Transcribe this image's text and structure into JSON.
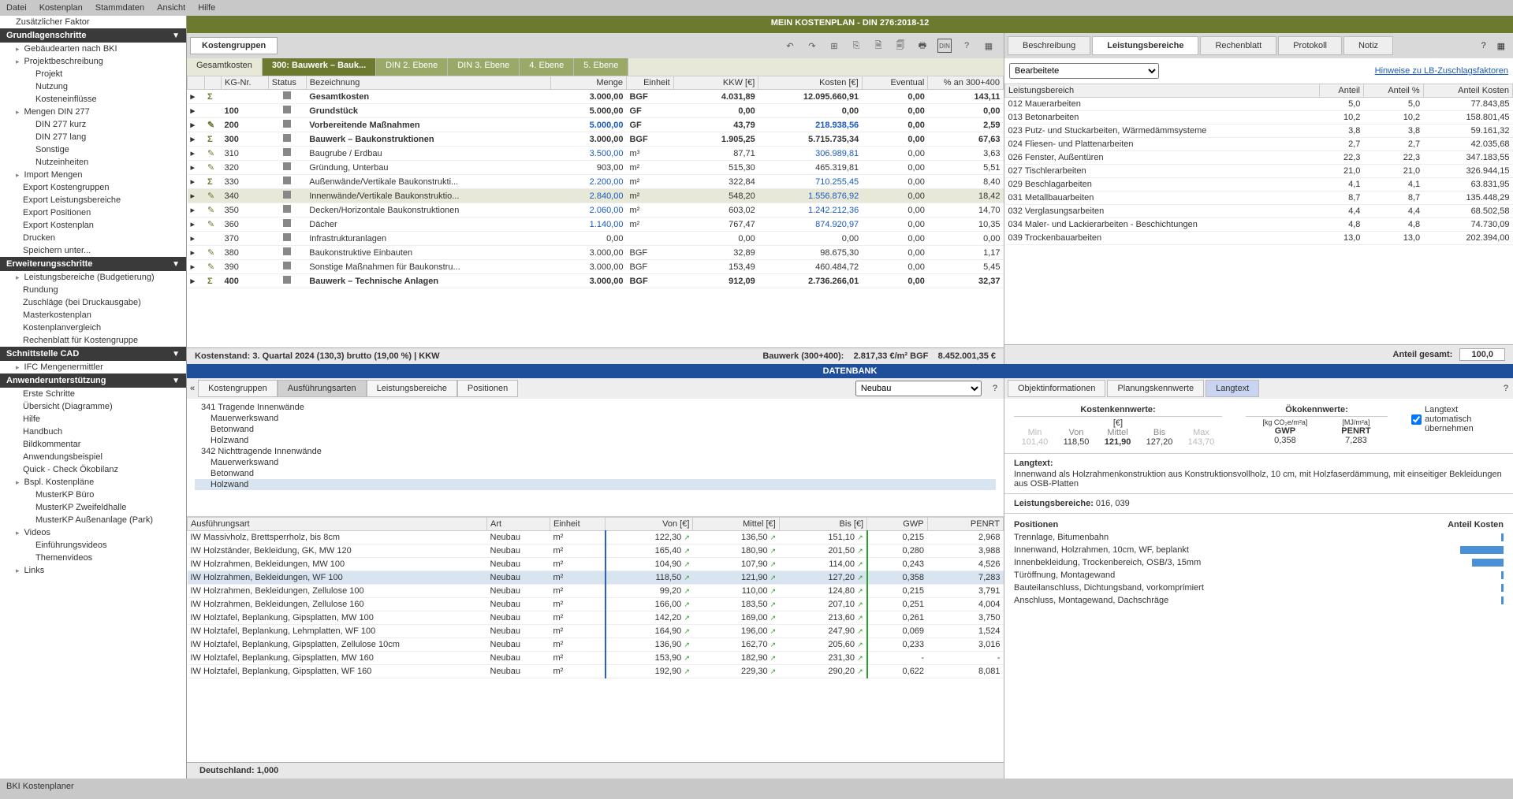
{
  "menu": [
    "Datei",
    "Kostenplan",
    "Stammdaten",
    "Ansicht",
    "Hilfe"
  ],
  "sidebar": {
    "top": "Zusätzlicher Faktor",
    "sections": [
      {
        "title": "Grundlagenschritte",
        "items": [
          {
            "label": "Gebäudearten nach BKI",
            "exp": true
          },
          {
            "label": "Projektbeschreibung",
            "exp": true
          },
          {
            "label": "Projekt",
            "lvl": 2
          },
          {
            "label": "Nutzung",
            "lvl": 2
          },
          {
            "label": "Kosteneinflüsse",
            "lvl": 2
          },
          {
            "label": "Mengen DIN 277",
            "exp": true
          },
          {
            "label": "DIN 277 kurz",
            "lvl": 2
          },
          {
            "label": "DIN 277 lang",
            "lvl": 2
          },
          {
            "label": "Sonstige",
            "lvl": 2
          },
          {
            "label": "Nutzeinheiten",
            "lvl": 2
          },
          {
            "label": "Import Mengen",
            "exp": true
          },
          {
            "label": "Export Kostengruppen"
          },
          {
            "label": "Export Leistungsbereiche"
          },
          {
            "label": "Export Positionen"
          },
          {
            "label": "Export Kostenplan"
          },
          {
            "label": "Drucken"
          },
          {
            "label": "Speichern unter..."
          }
        ]
      },
      {
        "title": "Erweiterungsschritte",
        "items": [
          {
            "label": "Leistungsbereiche (Budgetierung)",
            "exp": true
          },
          {
            "label": "Rundung"
          },
          {
            "label": "Zuschläge (bei Druckausgabe)"
          },
          {
            "label": "Masterkostenplan"
          },
          {
            "label": "Kostenplanvergleich"
          },
          {
            "label": "Rechenblatt für Kostengruppe"
          }
        ]
      },
      {
        "title": "Schnittstelle CAD",
        "items": [
          {
            "label": "IFC Mengenermittler",
            "exp": true
          }
        ]
      },
      {
        "title": "Anwenderunterstützung",
        "items": [
          {
            "label": "Erste Schritte"
          },
          {
            "label": "Übersicht (Diagramme)"
          },
          {
            "label": "Hilfe"
          },
          {
            "label": "Handbuch"
          },
          {
            "label": "Bildkommentar"
          },
          {
            "label": "Anwendungsbeispiel"
          },
          {
            "label": "Quick - Check Ökobilanz"
          },
          {
            "label": "Bspl. Kostenpläne",
            "exp": true
          },
          {
            "label": "MusterKP Büro",
            "lvl": 2
          },
          {
            "label": "MusterKP Zweifeldhalle",
            "lvl": 2
          },
          {
            "label": "MusterKP Außenanlage (Park)",
            "lvl": 2
          },
          {
            "label": "Videos",
            "exp": true
          },
          {
            "label": "Einführungsvideos",
            "lvl": 2
          },
          {
            "label": "Themenvideos",
            "lvl": 2
          },
          {
            "label": "Links",
            "exp": true
          }
        ]
      }
    ]
  },
  "title": "MEIN KOSTENPLAN - DIN 276:2018-12",
  "kg_tab": "Kostengruppen",
  "crumbs": [
    "Gesamtkosten",
    "300: Bauwerk – Bauk...",
    "DIN 2. Ebene",
    "DIN 3. Ebene",
    "4. Ebene",
    "5. Ebene"
  ],
  "cost_cols": [
    "KG-Nr.",
    "Status",
    "Bezeichnung",
    "Menge",
    "Einheit",
    "KKW [€]",
    "Kosten [€]",
    "Eventual",
    "% an 300+400"
  ],
  "cost_rows": [
    {
      "i": "Σ",
      "kg": "",
      "bez": "Gesamtkosten",
      "menge": "3.000,00",
      "ein": "BGF",
      "kkw": "4.031,89",
      "kost": "12.095.660,91",
      "ev": "0,00",
      "pct": "143,11",
      "bold": true
    },
    {
      "i": "",
      "kg": "100",
      "bez": "Grundstück",
      "menge": "5.000,00",
      "ein": "GF",
      "kkw": "0,00",
      "kost": "0,00",
      "ev": "0,00",
      "pct": "0,00",
      "bold": true
    },
    {
      "i": "✎",
      "kg": "200",
      "bez": "Vorbereitende Maßnahmen",
      "menge": "5.000,00",
      "ein": "GF",
      "kkw": "43,79",
      "kost": "218.938,56",
      "ev": "0,00",
      "pct": "2,59",
      "bold": true,
      "blue": true
    },
    {
      "i": "Σ",
      "kg": "300",
      "bez": "Bauwerk – Baukonstruktionen",
      "menge": "3.000,00",
      "ein": "BGF",
      "kkw": "1.905,25",
      "kost": "5.715.735,34",
      "ev": "0,00",
      "pct": "67,63",
      "bold": true
    },
    {
      "i": "✎",
      "kg": "310",
      "bez": "Baugrube / Erdbau",
      "menge": "3.500,00",
      "ein": "m³",
      "kkw": "87,71",
      "kost": "306.989,81",
      "ev": "0,00",
      "pct": "3,63",
      "blue": true
    },
    {
      "i": "✎",
      "kg": "320",
      "bez": "Gründung, Unterbau",
      "menge": "903,00",
      "ein": "m²",
      "kkw": "515,30",
      "kost": "465.319,81",
      "ev": "0,00",
      "pct": "5,51"
    },
    {
      "i": "Σ",
      "kg": "330",
      "bez": "Außenwände/Vertikale Baukonstrukti...",
      "menge": "2.200,00",
      "ein": "m²",
      "kkw": "322,84",
      "kost": "710.255,45",
      "ev": "0,00",
      "pct": "8,40",
      "blue": true
    },
    {
      "i": "✎",
      "kg": "340",
      "bez": "Innenwände/Vertikale Baukonstruktio...",
      "menge": "2.840,00",
      "ein": "m²",
      "kkw": "548,20",
      "kost": "1.556.876,92",
      "ev": "0,00",
      "pct": "18,42",
      "blue": true,
      "sel": true
    },
    {
      "i": "✎",
      "kg": "350",
      "bez": "Decken/Horizontale Baukonstruktionen",
      "menge": "2.060,00",
      "ein": "m²",
      "kkw": "603,02",
      "kost": "1.242.212,36",
      "ev": "0,00",
      "pct": "14,70",
      "blue": true
    },
    {
      "i": "✎",
      "kg": "360",
      "bez": "Dächer",
      "menge": "1.140,00",
      "ein": "m²",
      "kkw": "767,47",
      "kost": "874.920,97",
      "ev": "0,00",
      "pct": "10,35",
      "blue": true
    },
    {
      "i": "",
      "kg": "370",
      "bez": "Infrastrukturanlagen",
      "menge": "0,00",
      "ein": "",
      "kkw": "0,00",
      "kost": "0,00",
      "ev": "0,00",
      "pct": "0,00"
    },
    {
      "i": "✎",
      "kg": "380",
      "bez": "Baukonstruktive Einbauten",
      "menge": "3.000,00",
      "ein": "BGF",
      "kkw": "32,89",
      "kost": "98.675,30",
      "ev": "0,00",
      "pct": "1,17"
    },
    {
      "i": "✎",
      "kg": "390",
      "bez": "Sonstige Maßnahmen für Baukonstru...",
      "menge": "3.000,00",
      "ein": "BGF",
      "kkw": "153,49",
      "kost": "460.484,72",
      "ev": "0,00",
      "pct": "5,45"
    },
    {
      "i": "Σ",
      "kg": "400",
      "bez": "Bauwerk – Technische Anlagen",
      "menge": "3.000,00",
      "ein": "BGF",
      "kkw": "912,09",
      "kost": "2.736.266,01",
      "ev": "0,00",
      "pct": "32,37",
      "bold": true
    }
  ],
  "cost_footer_l": "Kostenstand: 3. Quartal 2024 (130,3) brutto (19,00 %) | KKW",
  "cost_footer_r1": "Bauwerk (300+400):",
  "cost_footer_r2": "2.817,33 €/m² BGF",
  "cost_footer_r3": "8.452.001,35 €",
  "rp_tabs": [
    "Beschreibung",
    "Leistungsbereiche",
    "Rechenblatt",
    "Protokoll",
    "Notiz"
  ],
  "rp_active": 1,
  "rp_select": "Bearbeitete",
  "rp_link": "Hinweise zu LB-Zuschlagsfaktoren",
  "lb_cols": [
    "Leistungsbereich",
    "Anteil",
    "Anteil %",
    "Anteil Kosten"
  ],
  "lb_rows": [
    [
      "012 Mauerarbeiten",
      "5,0",
      "5,0",
      "77.843,85"
    ],
    [
      "013 Betonarbeiten",
      "10,2",
      "10,2",
      "158.801,45"
    ],
    [
      "023 Putz- und Stuckarbeiten, Wärmedämmsysteme",
      "3,8",
      "3,8",
      "59.161,32"
    ],
    [
      "024 Fliesen- und Plattenarbeiten",
      "2,7",
      "2,7",
      "42.035,68"
    ],
    [
      "026 Fenster, Außentüren",
      "22,3",
      "22,3",
      "347.183,55"
    ],
    [
      "027 Tischlerarbeiten",
      "21,0",
      "21,0",
      "326.944,15"
    ],
    [
      "029 Beschlagarbeiten",
      "4,1",
      "4,1",
      "63.831,95"
    ],
    [
      "031 Metallbauarbeiten",
      "8,7",
      "8,7",
      "135.448,29"
    ],
    [
      "032 Verglasungsarbeiten",
      "4,4",
      "4,4",
      "68.502,58"
    ],
    [
      "034 Maler- und Lackierarbeiten - Beschichtungen",
      "4,8",
      "4,8",
      "74.730,09"
    ],
    [
      "039 Trockenbauarbeiten",
      "13,0",
      "13,0",
      "202.394,00"
    ]
  ],
  "lb_footer_l": "Anteil gesamt:",
  "lb_footer_v": "100,0",
  "db_title": "DATENBANK",
  "db_tabs": [
    "Kostengruppen",
    "Ausführungsarten",
    "Leistungsbereiche",
    "Positionen"
  ],
  "db_active": 1,
  "db_select": "Neubau",
  "db_tree": [
    {
      "t": "341 Tragende Innenwände",
      "l": 1
    },
    {
      "t": "Mauerwerkswand"
    },
    {
      "t": "Betonwand"
    },
    {
      "t": "Holzwand"
    },
    {
      "t": "342 Nichttragende Innenwände",
      "l": 1
    },
    {
      "t": "Mauerwerkswand"
    },
    {
      "t": "Betonwand"
    },
    {
      "t": "Holzwand",
      "sel": true
    }
  ],
  "db_cols": [
    "Ausführungsart",
    "Art",
    "Einheit",
    "Von [€]",
    "Mittel [€]",
    "Bis [€]",
    "GWP",
    "PENRT"
  ],
  "db_rows": [
    [
      "IW Massivholz, Brettsperrholz, bis 8cm",
      "Neubau",
      "m²",
      "122,30",
      "136,50",
      "151,10",
      "0,215",
      "2,968"
    ],
    [
      "IW Holzständer, Bekleidung, GK, MW 120",
      "Neubau",
      "m²",
      "165,40",
      "180,90",
      "201,50",
      "0,280",
      "3,988"
    ],
    [
      "IW Holzrahmen, Bekleidungen, MW 100",
      "Neubau",
      "m²",
      "104,90",
      "107,90",
      "114,00",
      "0,243",
      "4,526"
    ],
    [
      "IW Holzrahmen, Bekleidungen, WF 100",
      "Neubau",
      "m²",
      "118,50",
      "121,90",
      "127,20",
      "0,358",
      "7,283"
    ],
    [
      "IW Holzrahmen, Bekleidungen, Zellulose 100",
      "Neubau",
      "m²",
      "99,20",
      "110,00",
      "124,80",
      "0,215",
      "3,791"
    ],
    [
      "IW Holzrahmen, Bekleidungen, Zellulose 160",
      "Neubau",
      "m²",
      "166,00",
      "183,50",
      "207,10",
      "0,251",
      "4,004"
    ],
    [
      "IW Holztafel, Beplankung, Gipsplatten, MW 100",
      "Neubau",
      "m²",
      "142,20",
      "169,00",
      "213,60",
      "0,261",
      "3,750"
    ],
    [
      "IW Holztafel, Beplankung, Lehmplatten, WF 100",
      "Neubau",
      "m²",
      "164,90",
      "196,00",
      "247,90",
      "0,069",
      "1,524"
    ],
    [
      "IW Holztafel, Beplankung, Gipsplatten, Zellulose 10cm",
      "Neubau",
      "m²",
      "136,90",
      "162,70",
      "205,60",
      "0,233",
      "3,016"
    ],
    [
      "IW Holztafel, Beplankung, Gipsplatten, MW 160",
      "Neubau",
      "m²",
      "153,90",
      "182,90",
      "231,30",
      "-",
      "-"
    ],
    [
      "IW Holztafel, Beplankung, Gipsplatten, WF 160",
      "Neubau",
      "m²",
      "192,90",
      "229,30",
      "290,20",
      "0,622",
      "8,081"
    ]
  ],
  "db_hl": 3,
  "db_footer": "Deutschland: 1,000",
  "dr_tabs": [
    "Objektinformationen",
    "Planungskennwerte",
    "Langtext"
  ],
  "dr_active": 2,
  "kk": {
    "hdr1": "Kostenkennwerte:",
    "unit1": "[€]",
    "hdr2": "Ökokennwerte:",
    "unit2a": "[kg CO₂e/m²a]",
    "unit2b": "[MJ/m²a]",
    "cols": [
      {
        "l": "Min",
        "v": "101,40",
        "dim": true
      },
      {
        "l": "Von",
        "v": "118,50"
      },
      {
        "l": "Mittel",
        "v": "121,90",
        "b": true
      },
      {
        "l": "Bis",
        "v": "127,20"
      },
      {
        "l": "Max",
        "v": "143,70",
        "dim": true
      }
    ],
    "gwp_l": "GWP",
    "gwp_v": "0,358",
    "penrt_l": "PENRT",
    "penrt_v": "7,283",
    "check": "Langtext automatisch übernehmen"
  },
  "langtext_h": "Langtext:",
  "langtext": "Innenwand als Holzrahmenkonstruktion aus Konstruktionsvollholz, 10 cm, mit Holzfaserdämmung, mit einseitiger Bekleidungen aus OSB-Platten",
  "lb_line_h": "Leistungsbereiche:",
  "lb_line": "016, 039",
  "pos_h": [
    "Positionen",
    "Anteil Kosten"
  ],
  "pos_rows": [
    {
      "t": "Trennlage, Bitumenbahn",
      "w": 3
    },
    {
      "t": "Innenwand, Holzrahmen, 10cm, WF, beplankt",
      "w": 55
    },
    {
      "t": "Innenbekleidung, Trockenbereich, OSB/3, 15mm",
      "w": 40
    },
    {
      "t": "Türöffnung, Montagewand",
      "w": 3
    },
    {
      "t": "Bauteilanschluss, Dichtungsband, vorkomprimiert",
      "w": 3
    },
    {
      "t": "Anschluss, Montagewand, Dachschräge",
      "w": 3
    }
  ],
  "status": "BKI Kostenplaner"
}
